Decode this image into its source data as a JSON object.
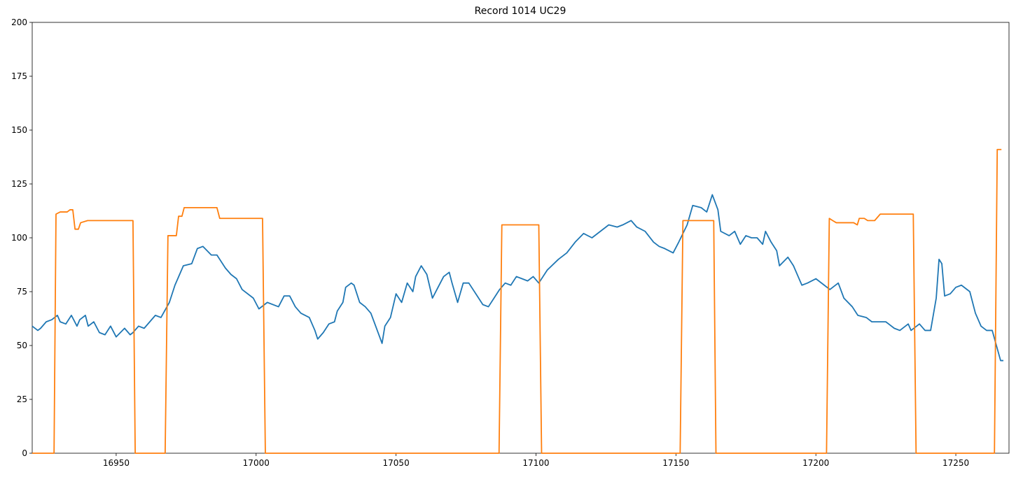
{
  "chart_data": {
    "type": "line",
    "title": "Record 1014 UC29",
    "xlim": [
      16920,
      17269
    ],
    "xticks": [
      16950,
      17000,
      17050,
      17100,
      17150,
      17200,
      17250
    ],
    "ylim": [
      0,
      200
    ],
    "yticks": [
      0,
      25,
      50,
      75,
      100,
      125,
      150,
      175,
      200
    ],
    "series": [
      {
        "color": "#1f77b4",
        "x": [
          16920,
          16922,
          16923,
          16925,
          16927,
          16929,
          16930,
          16932,
          16934,
          16936,
          16937,
          16939,
          16940,
          16942,
          16944,
          16946,
          16948,
          16950,
          16953,
          16955,
          16956,
          16958,
          16960,
          16964,
          16966,
          16969,
          16971,
          16974,
          16977,
          16979,
          16981,
          16984,
          16986,
          16989,
          16991,
          16993,
          16995,
          16999,
          17001,
          17004,
          17008,
          17010,
          17012,
          17014,
          17016,
          17019,
          17021,
          17022,
          17024,
          17026,
          17028,
          17029,
          17031,
          17032,
          17034,
          17035,
          17037,
          17039,
          17041,
          17043,
          17045,
          17046,
          17048,
          17050,
          17052,
          17054,
          17056,
          17057,
          17059,
          17061,
          17063,
          17065,
          17067,
          17069,
          17070,
          17072,
          17074,
          17076,
          17079,
          17081,
          17083,
          17085,
          17087,
          17089,
          17091,
          17093,
          17095,
          17097,
          17099,
          17101,
          17104,
          17108,
          17111,
          17114,
          17117,
          17120,
          17123,
          17126,
          17129,
          17131,
          17134,
          17136,
          17139,
          17142,
          17144,
          17146,
          17149,
          17151,
          17154,
          17156,
          17159,
          17161,
          17163,
          17165,
          17166,
          17169,
          17171,
          17173,
          17175,
          17177,
          17179,
          17181,
          17182,
          17184,
          17186,
          17187,
          17190,
          17192,
          17195,
          17197,
          17200,
          17203,
          17205,
          17208,
          17210,
          17213,
          17215,
          17218,
          17220,
          17223,
          17225,
          17228,
          17230,
          17233,
          17234,
          17237,
          17239,
          17241,
          17243,
          17244,
          17245,
          17246,
          17248,
          17250,
          17252,
          17255,
          17257,
          17259,
          17261,
          17263,
          17266,
          17267
        ],
        "values": [
          59,
          57,
          58,
          61,
          62,
          64,
          61,
          60,
          64,
          59,
          62,
          64,
          59,
          61,
          56,
          55,
          59,
          54,
          58,
          55,
          56,
          59,
          58,
          64,
          63,
          70,
          78,
          87,
          88,
          95,
          96,
          92,
          92,
          86,
          83,
          81,
          76,
          72,
          67,
          70,
          68,
          73,
          73,
          68,
          65,
          63,
          57,
          53,
          56,
          60,
          61,
          66,
          70,
          77,
          79,
          78,
          70,
          68,
          65,
          58,
          51,
          59,
          63,
          74,
          70,
          79,
          75,
          82,
          87,
          83,
          72,
          77,
          82,
          84,
          79,
          70,
          79,
          79,
          73,
          69,
          68,
          72,
          76,
          79,
          78,
          82,
          81,
          80,
          82,
          79,
          85,
          90,
          93,
          98,
          102,
          100,
          103,
          106,
          105,
          106,
          108,
          105,
          103,
          98,
          96,
          95,
          93,
          98,
          106,
          115,
          114,
          112,
          120,
          113,
          103,
          101,
          103,
          97,
          101,
          100,
          100,
          97,
          103,
          98,
          94,
          87,
          91,
          87,
          78,
          79,
          81,
          78,
          76,
          79,
          72,
          68,
          64,
          63,
          61,
          61,
          61,
          58,
          57,
          60,
          57,
          60,
          57,
          57,
          72,
          90,
          88,
          73,
          74,
          77,
          78,
          75,
          65,
          59,
          57,
          57,
          43,
          43
        ]
      },
      {
        "color": "#ff7f0e",
        "x": [
          16920,
          16927.8,
          16928.5,
          16930,
          16932.5,
          16933.5,
          16934.5,
          16935.3,
          16936.5,
          16937.3,
          16939.8,
          16956,
          16956.8,
          16967.5,
          16968.5,
          16971.5,
          16972.3,
          16973.5,
          16974.3,
          16978.5,
          16986,
          16987,
          17002.3,
          17003.3,
          17086.8,
          17087.8,
          17101,
          17102,
          17151.5,
          17152.5,
          17163.5,
          17164.3,
          17203.8,
          17204.8,
          17206,
          17207.3,
          17213.5,
          17214.8,
          17215.5,
          17217.3,
          17218.5,
          17221,
          17223,
          17234.8,
          17235.8,
          17263.8,
          17264.8,
          17266.3
        ],
        "values": [
          0,
          0,
          111,
          112,
          112,
          113,
          113,
          104,
          104,
          107,
          108,
          108,
          0,
          0,
          101,
          101,
          110,
          110,
          114,
          114,
          114,
          109,
          109,
          0,
          0,
          106,
          106,
          0,
          0,
          108,
          108,
          0,
          0,
          109,
          108,
          107,
          107,
          106,
          109,
          109,
          108,
          108,
          111,
          111,
          0,
          0,
          141,
          141
        ]
      }
    ]
  }
}
